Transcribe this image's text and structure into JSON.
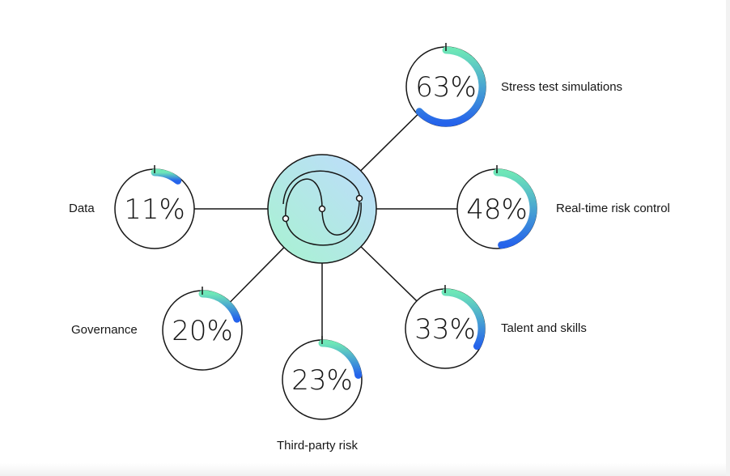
{
  "nodes": [
    {
      "id": "stress",
      "label": "Stress test simulations",
      "percent_text": "63%",
      "value": 0.63
    },
    {
      "id": "realtime",
      "label": "Real-time risk control",
      "percent_text": "48%",
      "value": 0.48
    },
    {
      "id": "talent",
      "label": "Talent and skills",
      "percent_text": "33%",
      "value": 0.33
    },
    {
      "id": "thirdparty",
      "label": "Third-party risk",
      "percent_text": "23%",
      "value": 0.23
    },
    {
      "id": "governance",
      "label": "Governance",
      "percent_text": "20%",
      "value": 0.2
    },
    {
      "id": "data",
      "label": "Data",
      "percent_text": "11%",
      "value": 0.11
    }
  ],
  "colors": {
    "arc_start": "#6ee7b7",
    "arc_end": "#2563eb",
    "hub_light": "#a7f3d0",
    "hub_blue": "#bfdbfe",
    "stroke": "#161616"
  },
  "icons": {
    "hub": "yin-yang-swirl-icon"
  }
}
